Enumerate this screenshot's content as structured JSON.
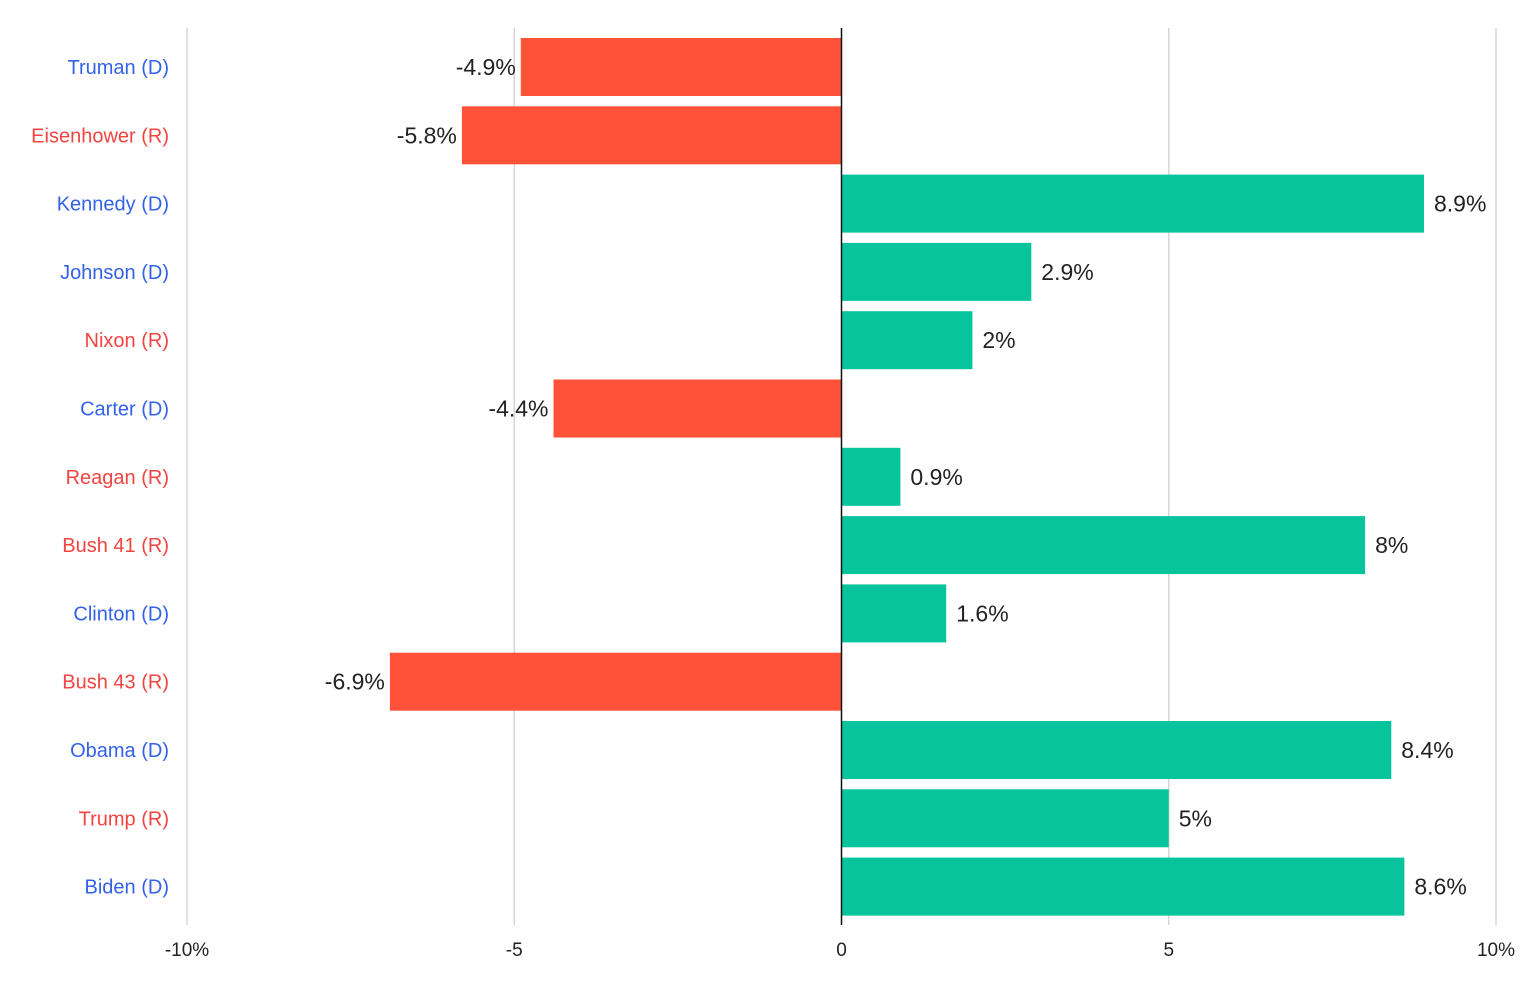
{
  "chart_data": {
    "type": "bar",
    "orientation": "horizontal",
    "title": "",
    "xlabel": "",
    "ylabel": "",
    "xlim": [
      -10,
      10
    ],
    "grid": true,
    "xticks": [
      {
        "value": -10,
        "label": "-10%"
      },
      {
        "value": -5,
        "label": "-5"
      },
      {
        "value": 0,
        "label": "0"
      },
      {
        "value": 5,
        "label": "5"
      },
      {
        "value": 10,
        "label": "10%"
      }
    ],
    "categories": [
      "Truman (D)",
      "Eisenhower (R)",
      "Kennedy (D)",
      "Johnson (D)",
      "Nixon (R)",
      "Carter (D)",
      "Reagan (R)",
      "Bush 41 (R)",
      "Clinton (D)",
      "Bush 43 (R)",
      "Obama (D)",
      "Trump (R)",
      "Biden (D)"
    ],
    "parties": [
      "D",
      "R",
      "D",
      "D",
      "R",
      "D",
      "R",
      "R",
      "D",
      "R",
      "D",
      "R",
      "D"
    ],
    "values": [
      -4.9,
      -5.8,
      8.9,
      2.9,
      2,
      -4.4,
      0.9,
      8,
      1.6,
      -6.9,
      8.4,
      5,
      8.6
    ],
    "value_labels": [
      "-4.9%",
      "-5.8%",
      "8.9%",
      "2.9%",
      "2%",
      "-4.4%",
      "0.9%",
      "8%",
      "1.6%",
      "-6.9%",
      "8.4%",
      "5%",
      "8.6%"
    ],
    "colors": {
      "positive": "#08c49c",
      "negative": "#ff5238",
      "D": "#3361e8",
      "R": "#f24440",
      "grid": "#d6d6d6",
      "axis": "#111111"
    }
  }
}
